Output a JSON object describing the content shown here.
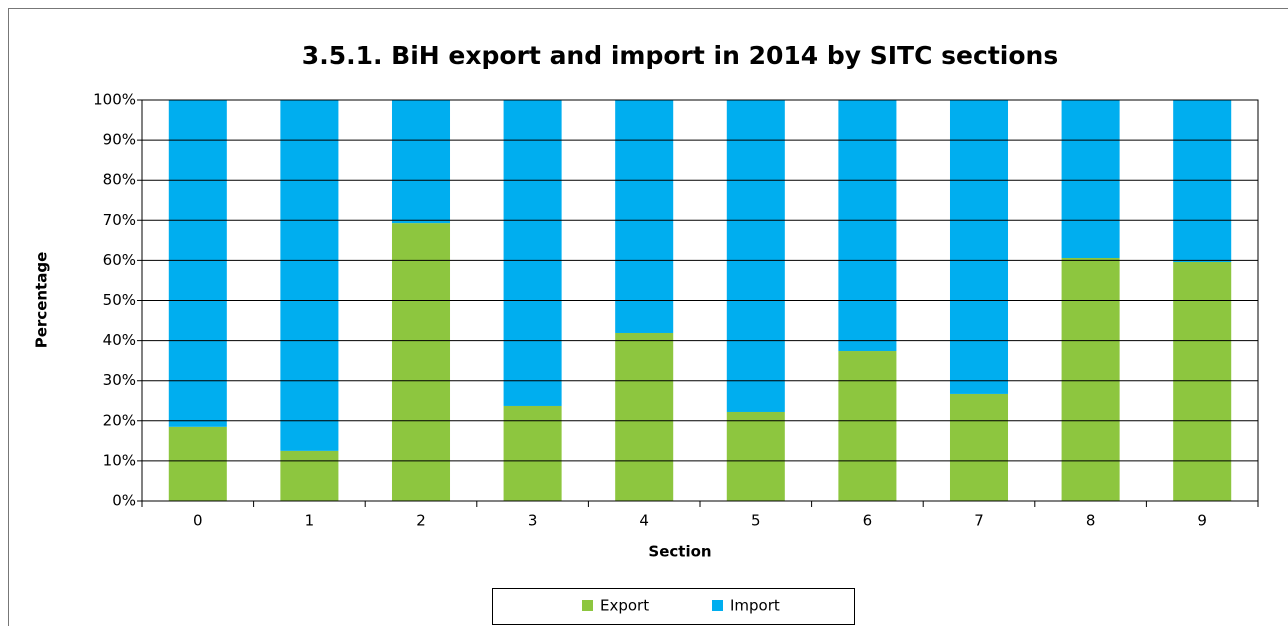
{
  "chart_data": {
    "type": "stacked_bar",
    "title": "3.5.1. BiH export and import in 2014 by SITC sections",
    "x_label": "Section",
    "y_label": "Percentage",
    "categories": [
      "0",
      "1",
      "2",
      "3",
      "4",
      "5",
      "6",
      "7",
      "8",
      "9"
    ],
    "series": [
      {
        "name": "Export",
        "color": "#8dc63f",
        "values": [
          18.5,
          12.5,
          69.3,
          23.7,
          41.9,
          22.2,
          37.4,
          26.7,
          60.6,
          59.6
        ]
      },
      {
        "name": "Import",
        "color": "#00aeef",
        "values": [
          81.5,
          87.5,
          30.7,
          76.3,
          58.1,
          77.8,
          62.6,
          73.3,
          39.4,
          40.4
        ]
      }
    ],
    "ylim": [
      0,
      100
    ],
    "yticks": [
      {
        "value": 0,
        "label": "0%"
      },
      {
        "value": 10,
        "label": "10%"
      },
      {
        "value": 20,
        "label": "20%"
      },
      {
        "value": 30,
        "label": "30%"
      },
      {
        "value": 40,
        "label": "40%"
      },
      {
        "value": 50,
        "label": "50%"
      },
      {
        "value": 60,
        "label": "60%"
      },
      {
        "value": 70,
        "label": "70%"
      },
      {
        "value": 80,
        "label": "80%"
      },
      {
        "value": 90,
        "label": "90%"
      },
      {
        "value": 100,
        "label": "100%"
      }
    ],
    "grid": true,
    "legend": "bottom"
  }
}
